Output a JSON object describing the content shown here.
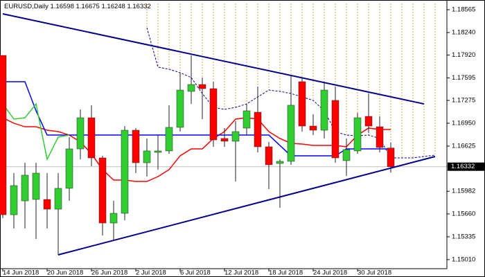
{
  "chart_data": {
    "type": "candlestick",
    "symbol": "EURUSD,Daily",
    "categories": [
      "14 Jun 2018",
      null,
      null,
      null,
      "20 Jun 2018",
      null,
      null,
      null,
      "26 Jun 2018",
      null,
      null,
      null,
      "2 Jul 2018",
      null,
      null,
      null,
      "6 Jul 2018",
      null,
      null,
      null,
      "12 Jul 2018",
      null,
      null,
      null,
      "18 Jul 2018",
      null,
      null,
      null,
      "24 Jul 2018",
      null,
      null,
      null,
      "30 Jul 2018",
      null,
      null,
      null,
      null,
      null,
      null,
      null
    ],
    "open": [
      1.17915,
      1.15649,
      1.15846,
      1.15866,
      1.15866,
      1.15728,
      1.16024,
      1.16585,
      1.17028,
      1.16457,
      1.15531,
      1.15669,
      1.16851,
      1.16388,
      1.16536,
      1.16556,
      1.16891,
      1.17403,
      1.17501,
      1.17442,
      1.16733,
      1.16694,
      1.16881,
      1.17107,
      1.16615,
      1.16378,
      1.16408,
      1.17541,
      1.1691,
      1.16851,
      1.17275,
      1.16418,
      1.16556,
      1.17048,
      1.169,
      1.16598,
      null,
      null,
      null,
      null
    ],
    "high": [
      1.17915,
      1.1624,
      1.16388,
      1.16388,
      1.1624,
      1.1624,
      1.16753,
      1.17147,
      1.17206,
      1.16487,
      1.15846,
      1.1691,
      1.16881,
      1.16733,
      1.16782,
      1.17206,
      1.17669,
      1.17915,
      1.176,
      1.17541,
      1.16881,
      1.16979,
      1.17225,
      1.17472,
      1.16684,
      1.16437,
      1.17619,
      1.176,
      1.17078,
      1.17521,
      1.17472,
      1.16733,
      1.17097,
      1.17373,
      1.17048,
      1.16675,
      null,
      null,
      null,
      null
    ],
    "low": [
      1.156,
      1.15452,
      1.15452,
      1.15305,
      1.15452,
      1.15078,
      1.15846,
      1.16437,
      1.16339,
      1.15354,
      1.15275,
      1.15571,
      1.1624,
      1.16191,
      1.1629,
      1.16516,
      1.16831,
      1.17225,
      1.17009,
      1.16615,
      1.16615,
      1.16122,
      1.16782,
      1.16536,
      1.16014,
      1.15748,
      1.16359,
      1.16831,
      1.16782,
      1.16733,
      1.16388,
      1.16201,
      1.16516,
      1.16812,
      1.16536,
      1.16248,
      null,
      null,
      null,
      null
    ],
    "close": [
      1.15649,
      1.16063,
      1.16211,
      1.1624,
      1.15728,
      1.16024,
      1.16585,
      1.17028,
      1.16457,
      1.15531,
      1.15669,
      1.16851,
      1.16388,
      1.16556,
      1.16556,
      1.16891,
      1.17422,
      1.17501,
      1.17442,
      1.16713,
      1.16694,
      1.16831,
      1.17127,
      1.16615,
      1.16359,
      1.16408,
      1.17206,
      1.1691,
      1.16851,
      1.17422,
      1.16457,
      1.16575,
      1.17028,
      1.1691,
      1.16605,
      1.16332,
      null,
      null,
      null,
      null
    ],
    "up_color": "#32cd32",
    "down_color": "#ff0000",
    "ylim": [
      1.14881,
      1.18703
    ],
    "yticks": [
      1.18565,
      {
        "value": 1.1824,
        "label": "1.18240"
      },
      {
        "value": 1.1792,
        "label": "1.17920"
      },
      1.17595,
      1.17275,
      {
        "value": 1.1695,
        "label": "1.16950"
      },
      1.16625,
      1.15982,
      {
        "value": 1.1566,
        "label": "1.15660"
      },
      1.15335,
      {
        "value": 1.1501,
        "label": "1.15010"
      }
    ],
    "price_line_color": "#c0c0c0",
    "lines": [
      {
        "color": "#ff0000",
        "values": [
          1.17028,
          1.1695,
          1.169,
          1.169,
          1.16851,
          1.16831,
          1.16782,
          1.16684,
          1.16516,
          1.1629,
          1.16142,
          1.16142,
          1.16122,
          1.16122,
          1.16191,
          1.1629,
          1.16487,
          1.16585,
          1.16585,
          1.16733,
          1.16831,
          1.17009,
          1.17028,
          1.17009,
          1.16831,
          1.16733,
          1.16664,
          1.16654,
          1.16634,
          1.16634,
          1.16634,
          1.16615,
          1.16782,
          1.16881,
          1.16861,
          1.16861,
          null,
          null,
          null,
          null
        ]
      },
      {
        "color": "#0000ff",
        "values": [
          1.17541,
          1.17541,
          1.17541,
          1.17127,
          1.16782,
          1.16782,
          1.16782,
          1.16782,
          1.16782,
          1.16782,
          1.16782,
          1.16782,
          1.16782,
          1.16782,
          1.16782,
          1.16782,
          1.16782,
          1.16782,
          1.16782,
          1.16782,
          1.16782,
          1.16782,
          1.16782,
          1.16782,
          1.16782,
          1.16634,
          1.16487,
          1.16487,
          1.16487,
          1.16487,
          1.16487,
          1.16585,
          1.16585,
          1.16585,
          1.16585,
          1.16585,
          null,
          null,
          null,
          null
        ]
      },
      {
        "color": "#32cd32",
        "values": [
          1.17225,
          1.17009,
          1.17028,
          1.17225,
          1.16437,
          1.16753,
          1.16782,
          null,
          null,
          null,
          null,
          null,
          null,
          null,
          null,
          null,
          null,
          null,
          null,
          null,
          null,
          null,
          null,
          null,
          null,
          null,
          null,
          null,
          null,
          null,
          null,
          null,
          null,
          null,
          null,
          null,
          null,
          null,
          null,
          null
        ]
      }
    ],
    "cloud": {
      "color": "#f0a050",
      "edge_color": "#000080",
      "top": [
        null,
        null,
        null,
        null,
        null,
        null,
        null,
        null,
        null,
        null,
        null,
        null,
        null,
        1.18654,
        1.18654,
        1.18654,
        1.18654,
        1.18654,
        1.18654,
        1.18654,
        1.18654,
        1.18654,
        1.18654,
        1.18654,
        1.18654,
        1.18654,
        1.18654,
        1.18654,
        1.18654,
        1.18654,
        1.18654,
        1.18654,
        1.18654,
        1.18654,
        1.18654,
        1.18654,
        1.18654,
        1.18654,
        1.18654,
        1.18654
      ],
      "bottom": [
        null,
        null,
        null,
        null,
        null,
        null,
        null,
        null,
        null,
        null,
        null,
        null,
        null,
        1.18309,
        1.17748,
        1.17718,
        1.17669,
        1.176,
        1.17373,
        1.17176,
        1.17147,
        1.17176,
        1.17225,
        1.17324,
        1.17422,
        1.17403,
        1.17373,
        1.17324,
        1.17275,
        1.17127,
        1.16831,
        1.16782,
        1.16772,
        1.16782,
        1.16733,
        1.16457,
        1.16457,
        1.16457,
        1.16477,
        1.16497
      ]
    },
    "trendlines": [
      {
        "color": "#00008b",
        "x": [
          0,
          38
        ],
        "y": [
          1.18506,
          1.17225
        ]
      },
      {
        "color": "#00008b",
        "x": [
          5,
          39
        ],
        "y": [
          1.15078,
          1.16477
        ]
      }
    ]
  }
}
